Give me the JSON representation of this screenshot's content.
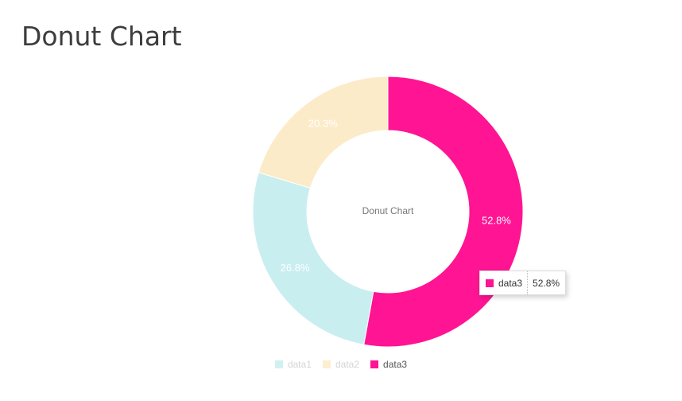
{
  "page": {
    "title": "Donut Chart"
  },
  "chart_data": {
    "type": "pie",
    "donut": true,
    "title": "Donut Chart",
    "series": [
      {
        "name": "data1",
        "value": 26.8,
        "label": "26.8%",
        "color": "#c8eef0"
      },
      {
        "name": "data2",
        "value": 20.3,
        "label": "20.3%",
        "color": "#fcebc8"
      },
      {
        "name": "data3",
        "value": 52.8,
        "label": "52.8%",
        "color": "#ff1493"
      }
    ],
    "legend_position": "bottom",
    "legend_state": {
      "data1": "dimmed",
      "data2": "dimmed",
      "data3": "active"
    }
  },
  "tooltip": {
    "name": "data3",
    "value": "52.8%",
    "color": "#ff1493"
  }
}
